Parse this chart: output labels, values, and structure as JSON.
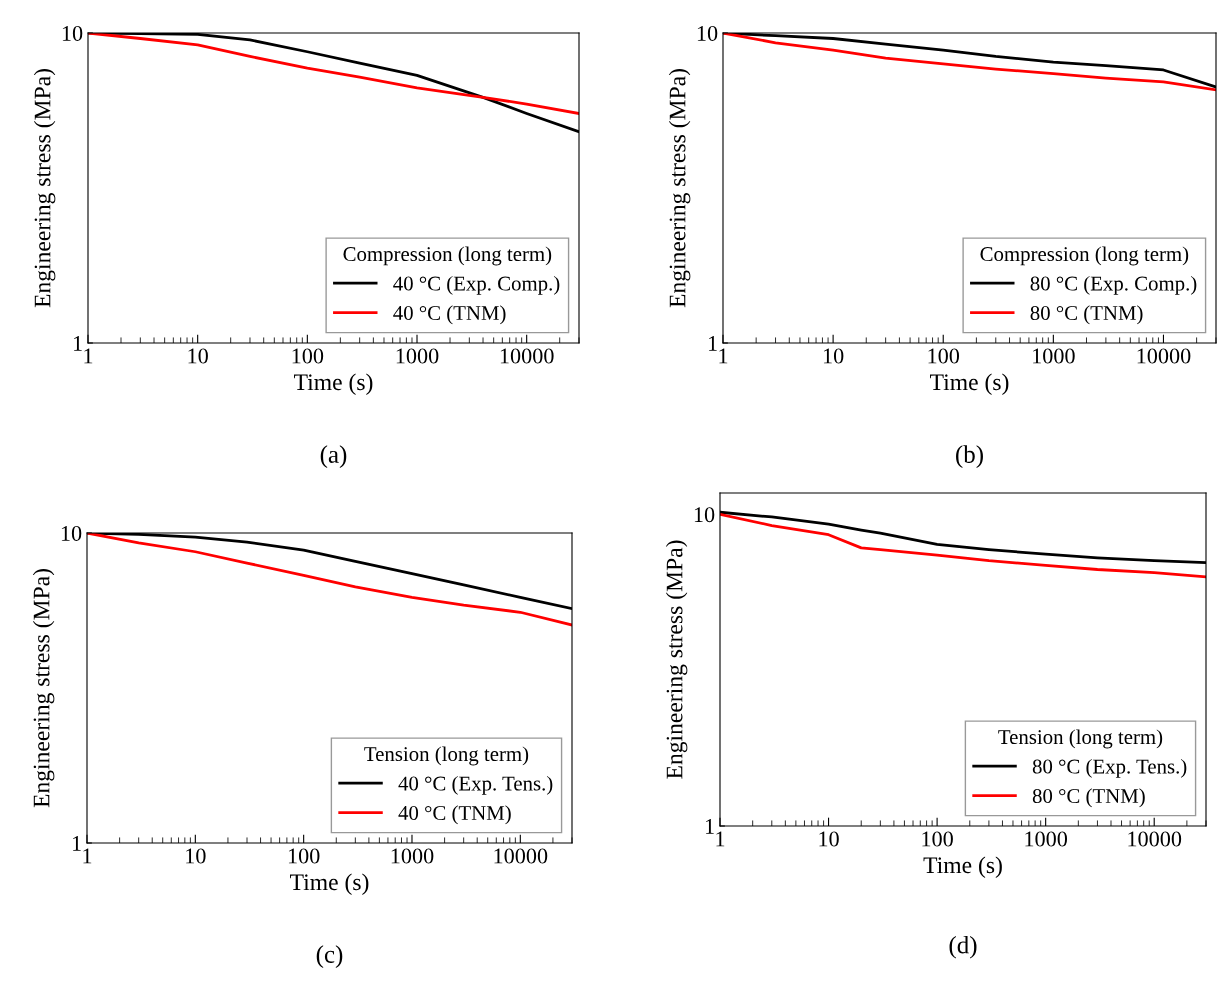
{
  "chart_data": [
    {
      "type": "line",
      "xlabel": "Time (s)",
      "ylabel": "Engineering stress (MPa)",
      "legend_title": "Compression (long term)",
      "legend": "lower right",
      "log": "xy",
      "grid": false,
      "xlim": [
        1,
        30000
      ],
      "xticks": [
        1,
        10,
        100,
        1000,
        10000
      ],
      "ylim": [
        1,
        10
      ],
      "yticks": [
        1,
        10
      ],
      "annotations": [
        "(a)"
      ],
      "x": [
        1,
        3,
        10,
        30,
        100,
        300,
        1000,
        4000,
        10000,
        30000
      ],
      "series": [
        {
          "name": "40 °C (Exp. Comp.)",
          "color": "#000000",
          "values": [
            10,
            9.95,
            9.9,
            9.5,
            8.7,
            8.0,
            7.3,
            6.2,
            5.5,
            4.8
          ]
        },
        {
          "name": "40 °C (TNM)",
          "color": "#ff0000",
          "values": [
            10,
            9.6,
            9.15,
            8.4,
            7.7,
            7.2,
            6.65,
            6.2,
            5.9,
            5.5
          ]
        }
      ]
    },
    {
      "type": "line",
      "xlabel": "Time (s)",
      "ylabel": "Engineering stress (MPa)",
      "legend_title": "Compression (long term)",
      "legend": "lower right",
      "log": "xy",
      "grid": false,
      "xlim": [
        1,
        30000
      ],
      "xticks": [
        1,
        10,
        100,
        1000,
        10000
      ],
      "ylim": [
        1,
        10
      ],
      "yticks": [
        1,
        10
      ],
      "annotations": [
        "(b)"
      ],
      "x": [
        1,
        3,
        10,
        30,
        100,
        300,
        1000,
        3000,
        10000,
        30000
      ],
      "series": [
        {
          "name": "80 °C (Exp. Comp.)",
          "color": "#000000",
          "values": [
            10,
            9.8,
            9.6,
            9.2,
            8.8,
            8.4,
            8.06,
            7.85,
            7.6,
            6.7
          ]
        },
        {
          "name": "80 °C (TNM)",
          "color": "#ff0000",
          "values": [
            10,
            9.3,
            8.8,
            8.3,
            7.95,
            7.65,
            7.4,
            7.15,
            6.95,
            6.55
          ]
        }
      ]
    },
    {
      "type": "line",
      "xlabel": "Time (s)",
      "ylabel": "Engineering stress (MPa)",
      "legend_title": "Tension (long term)",
      "legend": "lower right",
      "log": "xy",
      "grid": false,
      "xlim": [
        1,
        30000
      ],
      "xticks": [
        1,
        10,
        100,
        1000,
        10000
      ],
      "ylim": [
        1,
        10
      ],
      "yticks": [
        1,
        10
      ],
      "annotations": [
        "(c)"
      ],
      "x": [
        1,
        3,
        10,
        30,
        100,
        300,
        1000,
        3000,
        10000,
        30000
      ],
      "series": [
        {
          "name": "40 °C (Exp. Tens.)",
          "color": "#000000",
          "values": [
            10,
            9.9,
            9.7,
            9.35,
            8.8,
            8.1,
            7.4,
            6.8,
            6.2,
            5.7
          ]
        },
        {
          "name": "40 °C (TNM)",
          "color": "#ff0000",
          "values": [
            10,
            9.3,
            8.7,
            8.0,
            7.3,
            6.7,
            6.2,
            5.85,
            5.55,
            5.05
          ]
        }
      ]
    },
    {
      "type": "line",
      "xlabel": "Time (s)",
      "ylabel": "Engineering stress (MPa)",
      "legend_title": "Tension (long term)",
      "legend": "lower right",
      "log": "xy",
      "grid": false,
      "xlim": [
        1,
        30000
      ],
      "xticks": [
        1,
        10,
        100,
        1000,
        10000
      ],
      "ylim": [
        1,
        11.7
      ],
      "yticks": [
        1,
        10
      ],
      "annotations": [
        "(d)"
      ],
      "x": [
        1,
        3,
        10,
        20,
        30,
        100,
        300,
        1000,
        3000,
        10000,
        30000
      ],
      "series": [
        {
          "name": "80 °C (Exp. Tens.)",
          "color": "#000000",
          "values": [
            10.15,
            9.8,
            9.3,
            8.9,
            8.7,
            8.0,
            7.7,
            7.45,
            7.25,
            7.1,
            7.0
          ]
        },
        {
          "name": "80 °C (TNM)",
          "color": "#ff0000",
          "values": [
            10,
            9.2,
            8.6,
            7.8,
            7.7,
            7.4,
            7.1,
            6.85,
            6.65,
            6.5,
            6.3
          ]
        }
      ]
    }
  ]
}
